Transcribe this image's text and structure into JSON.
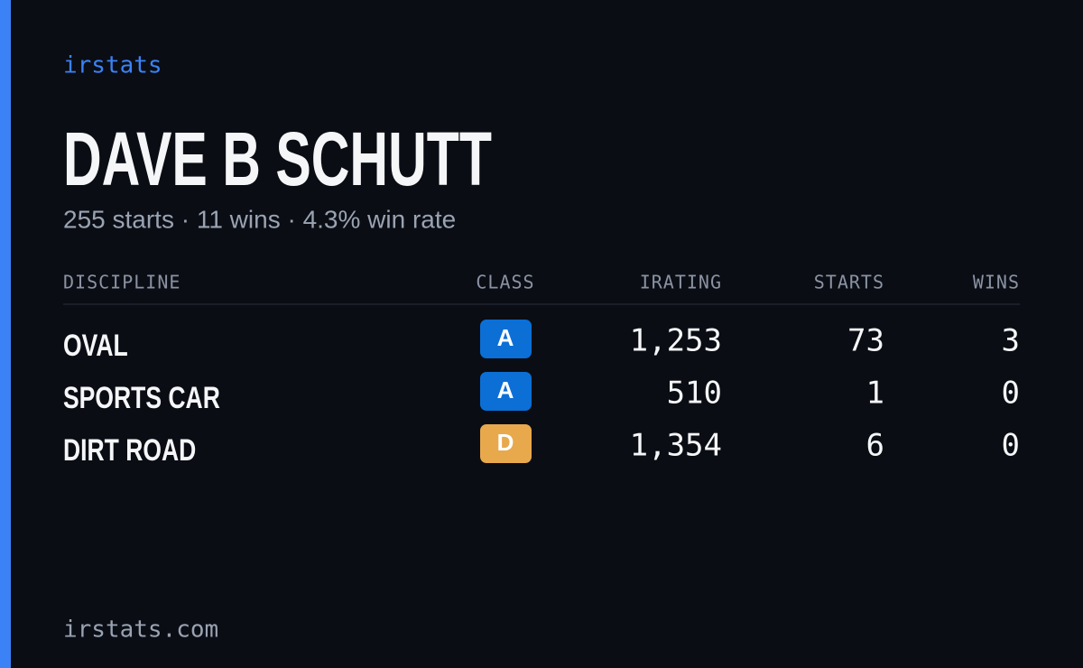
{
  "brand": "irstats",
  "profile": {
    "name": "DAVE B SCHUTT",
    "summary": "255 starts · 11 wins · 4.3% win rate"
  },
  "table": {
    "headers": [
      "DISCIPLINE",
      "CLASS",
      "IRATING",
      "STARTS",
      "WINS"
    ],
    "rows": [
      {
        "discipline": "OVAL",
        "class": "A",
        "class_color": "#0b6fd6",
        "irating": "1,253",
        "starts": "73",
        "wins": "3"
      },
      {
        "discipline": "SPORTS CAR",
        "class": "A",
        "class_color": "#0b6fd6",
        "irating": "510",
        "starts": "1",
        "wins": "0"
      },
      {
        "discipline": "DIRT ROAD",
        "class": "D",
        "class_color": "#e8a94c",
        "irating": "1,354",
        "starts": "6",
        "wins": "0"
      }
    ]
  },
  "footer": "irstats.com"
}
